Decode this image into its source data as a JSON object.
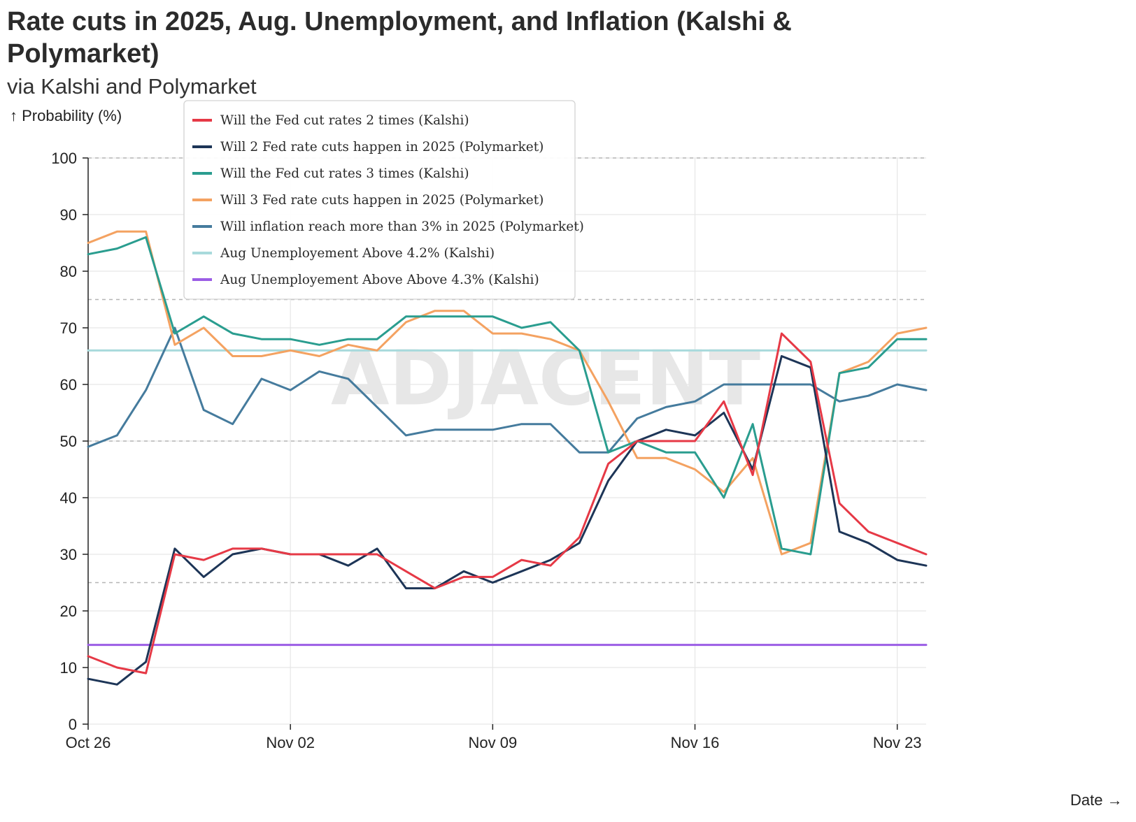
{
  "title": "Rate cuts in 2025, Aug. Unemployment, and Inflation (Kalshi & Polymarket)",
  "subtitle": "via Kalshi and Polymarket",
  "y_axis_label": "↑ Probability (%)",
  "x_axis_label": "Date →",
  "watermark": "ADJACENT",
  "chart_data": {
    "type": "line",
    "title": "Rate cuts in 2025, Aug. Unemployment, and Inflation (Kalshi & Polymarket)",
    "subtitle": "via Kalshi and Polymarket",
    "xlabel": "Date",
    "ylabel": "Probability (%)",
    "ylim": [
      0,
      100
    ],
    "yticks": [
      0,
      10,
      20,
      30,
      40,
      50,
      60,
      70,
      80,
      90,
      100
    ],
    "x_dates": [
      "Oct 26",
      "Oct 27",
      "Oct 28",
      "Oct 29",
      "Oct 30",
      "Oct 31",
      "Nov 01",
      "Nov 02",
      "Nov 03",
      "Nov 04",
      "Nov 05",
      "Nov 06",
      "Nov 07",
      "Nov 08",
      "Nov 09",
      "Nov 10",
      "Nov 11",
      "Nov 12",
      "Nov 13",
      "Nov 14",
      "Nov 15",
      "Nov 16",
      "Nov 17",
      "Nov 18",
      "Nov 19",
      "Nov 20",
      "Nov 21",
      "Nov 22",
      "Nov 23",
      "Nov 24"
    ],
    "x_ticks": [
      {
        "label": "Oct 26",
        "index": 0
      },
      {
        "label": "Nov 02",
        "index": 7
      },
      {
        "label": "Nov 09",
        "index": 14
      },
      {
        "label": "Nov 16",
        "index": 21
      },
      {
        "label": "Nov 23",
        "index": 28
      }
    ],
    "dashed_reference_lines": [
      25,
      50,
      75,
      100
    ],
    "grid": true,
    "legend_position": "top-left",
    "series": [
      {
        "name": "Will the Fed cut rates 2 times (Kalshi)",
        "color": "#e63946",
        "values": [
          12,
          10,
          9,
          30,
          29,
          31,
          31,
          30,
          30,
          30,
          30,
          27,
          24,
          26,
          26,
          29,
          28,
          33,
          46,
          50,
          50,
          50,
          57,
          44,
          69,
          64,
          39,
          34,
          32,
          30
        ]
      },
      {
        "name": "Will 2 Fed rate cuts happen in 2025 (Polymarket)",
        "color": "#1d3557",
        "values": [
          8,
          7,
          11,
          31,
          26,
          30,
          31,
          30,
          30,
          28,
          31,
          24,
          24,
          27,
          25,
          27,
          29,
          32,
          43,
          50,
          52,
          51,
          55,
          45,
          65,
          63,
          34,
          32,
          29,
          28
        ]
      },
      {
        "name": "Will the Fed cut rates 3 times (Kalshi)",
        "color": "#2a9d8f",
        "values": [
          83,
          84,
          86,
          69,
          72,
          69,
          68,
          68,
          67,
          68,
          68,
          72,
          72,
          72,
          72,
          70,
          71,
          66,
          48,
          50,
          48,
          48,
          40,
          53,
          31,
          30,
          62,
          63,
          68,
          68
        ]
      },
      {
        "name": "Will 3 Fed rate cuts happen in 2025 (Polymarket)",
        "color": "#f4a261",
        "values": [
          85,
          87,
          87,
          67,
          70,
          65,
          65,
          66,
          65,
          67,
          66,
          71,
          73,
          73,
          69,
          69,
          68,
          66,
          57,
          47,
          47,
          45,
          41,
          47,
          30,
          32,
          62,
          64,
          69,
          70
        ]
      },
      {
        "name": "Will inflation reach more than 3% in 2025 (Polymarket)",
        "color": "#457b9d",
        "values": [
          49,
          51,
          59,
          70,
          55.5,
          53,
          61,
          59,
          62.3,
          61,
          56,
          51,
          52,
          52,
          52,
          53,
          53,
          48,
          48,
          54,
          56,
          57,
          60,
          60,
          60,
          60,
          57,
          58,
          60,
          59
        ]
      },
      {
        "name": "Aug Unemployement Above 4.2% (Kalshi)",
        "color": "#a8dadc",
        "values": [
          66,
          66,
          66,
          66,
          66,
          66,
          66,
          66,
          66,
          66,
          66,
          66,
          66,
          66,
          66,
          66,
          66,
          66,
          66,
          66,
          66,
          66,
          66,
          66,
          66,
          66,
          66,
          66,
          66,
          66
        ]
      },
      {
        "name": "Aug Unemployement Above Above 4.3% (Kalshi)",
        "color": "#9b5de5",
        "values": [
          14,
          14,
          14,
          14,
          14,
          14,
          14,
          14,
          14,
          14,
          14,
          14,
          14,
          14,
          14,
          14,
          14,
          14,
          14,
          14,
          14,
          14,
          14,
          14,
          14,
          14,
          14,
          14,
          14,
          14
        ]
      }
    ]
  }
}
